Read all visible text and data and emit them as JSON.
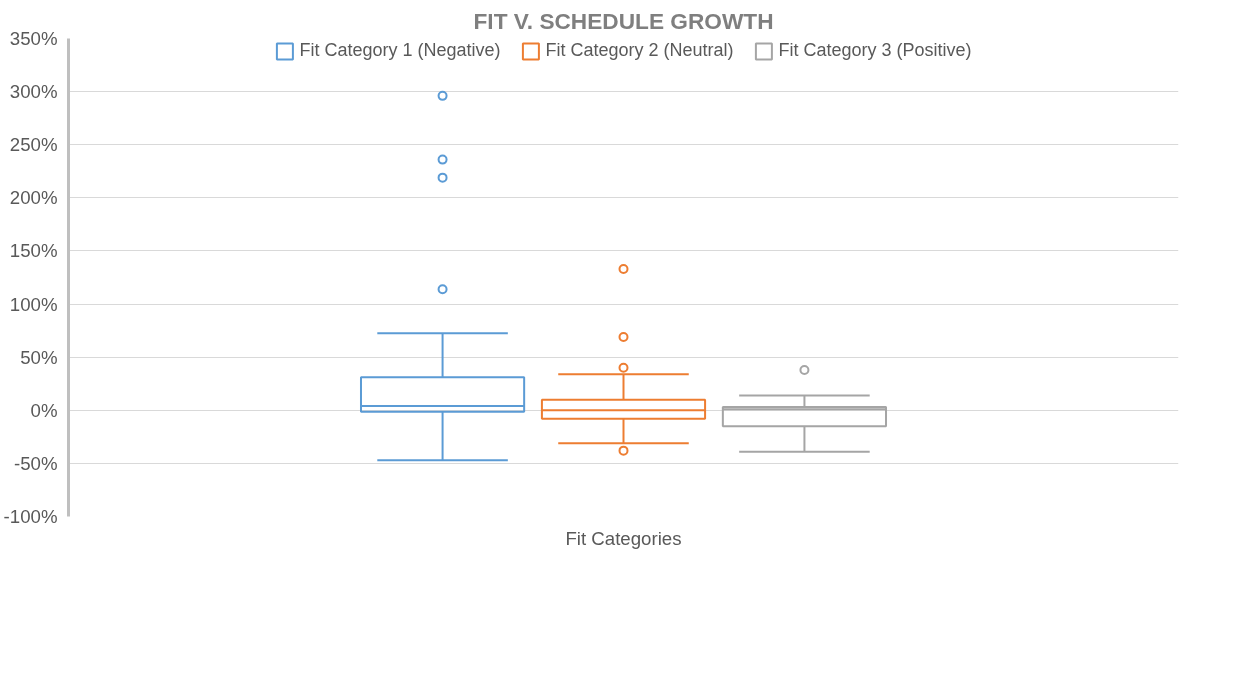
{
  "chart_data": {
    "type": "box",
    "title": "FIT V. SCHEDULE GROWTH",
    "categories": [
      "Fit Categories"
    ],
    "series": [
      {
        "name": "Fit Category 1 (Negative)",
        "color": "#5b9bd5",
        "boxes": [
          {
            "low": -47,
            "q1": -1.5,
            "median": 4,
            "q3": 31,
            "high": 72.5,
            "outliers": [
              296,
              236,
              219,
              114
            ]
          }
        ]
      },
      {
        "name": "Fit Category 2 (Neutral)",
        "color": "#ed7d31",
        "boxes": [
          {
            "low": -31,
            "q1": -8,
            "median": 0,
            "q3": 10,
            "high": 34,
            "outliers": [
              133,
              69,
              40,
              -38
            ]
          }
        ]
      },
      {
        "name": "Fit Category 3 (Positive)",
        "color": "#a5a5a5",
        "boxes": [
          {
            "low": -39,
            "q1": -15,
            "median": 1,
            "q3": 3,
            "high": 14,
            "outliers": [
              38
            ]
          }
        ]
      }
    ],
    "ylim": [
      -100,
      350
    ],
    "yticks": [
      {
        "value": -100,
        "label": "-100%"
      },
      {
        "value": -50,
        "label": "-50%"
      },
      {
        "value": 0,
        "label": "0%"
      },
      {
        "value": 50,
        "label": "50%"
      },
      {
        "value": 100,
        "label": "100%"
      },
      {
        "value": 150,
        "label": "150%"
      },
      {
        "value": 200,
        "label": "200%"
      },
      {
        "value": 250,
        "label": "250%"
      },
      {
        "value": 300,
        "label": "300%"
      },
      {
        "value": 350,
        "label": "350%"
      }
    ],
    "grid": "y",
    "legend": "top"
  }
}
